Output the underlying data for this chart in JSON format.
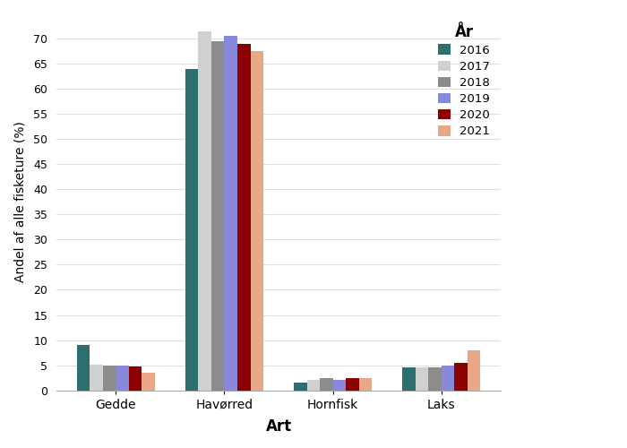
{
  "categories": [
    "Gedde",
    "Havørred",
    "Hornfisk",
    "Laks"
  ],
  "years": [
    "2016",
    "2017",
    "2018",
    "2019",
    "2020",
    "2021"
  ],
  "values": {
    "Gedde": [
      9.0,
      5.1,
      5.0,
      5.0,
      4.8,
      3.5
    ],
    "Havørred": [
      64.0,
      71.5,
      69.5,
      70.5,
      69.0,
      67.5
    ],
    "Hornfisk": [
      1.5,
      2.0,
      2.5,
      2.0,
      2.5,
      2.5
    ],
    "Laks": [
      4.5,
      4.5,
      4.5,
      5.0,
      5.5,
      8.0
    ]
  },
  "colors": {
    "2016": "#2d6e6e",
    "2017": "#d0d0d0",
    "2018": "#8c8c8c",
    "2019": "#8888dd",
    "2020": "#8b0000",
    "2021": "#e8a888"
  },
  "xlabel": "Art",
  "ylabel": "Andel af alle fisketure (%)",
  "legend_title": "År",
  "ylim": [
    0,
    75
  ],
  "yticks": [
    0,
    5,
    10,
    15,
    20,
    25,
    30,
    35,
    40,
    45,
    50,
    55,
    60,
    65,
    70
  ],
  "background_color": "#ffffff",
  "bar_width": 0.12,
  "figsize": [
    7.0,
    5.0
  ],
  "dpi": 100
}
